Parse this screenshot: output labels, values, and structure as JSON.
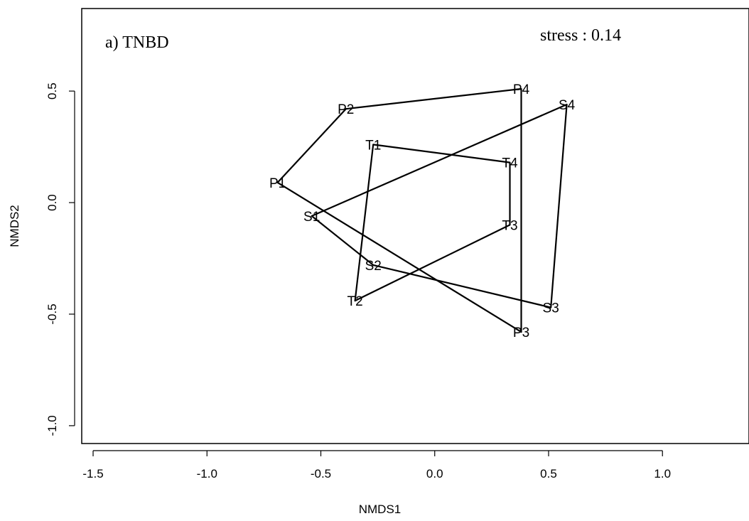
{
  "chart_data": {
    "type": "scatter",
    "title": "",
    "panel_label": "a) TNBD",
    "annotation": "stress : 0.14",
    "xlabel": "NMDS1",
    "ylabel": "NMDS2",
    "xlim": [
      -1.55,
      1.38
    ],
    "ylim": [
      -1.08,
      0.87
    ],
    "xticks": [
      -1.5,
      -1.0,
      -0.5,
      0.0,
      0.5,
      1.0
    ],
    "xtick_labels": [
      "-1.5",
      "-1.0",
      "-0.5",
      "0.0",
      "0.5",
      "1.0"
    ],
    "yticks": [
      -1.0,
      -0.5,
      0.0,
      0.5
    ],
    "ytick_labels": [
      "-1.0",
      "-0.5",
      "0.0",
      "0.5"
    ],
    "points": [
      {
        "label": "P1",
        "x": -0.69,
        "y": 0.09
      },
      {
        "label": "P2",
        "x": -0.39,
        "y": 0.42
      },
      {
        "label": "P4",
        "x": 0.38,
        "y": 0.51
      },
      {
        "label": "P3",
        "x": 0.38,
        "y": -0.58
      },
      {
        "label": "S1",
        "x": -0.54,
        "y": -0.06
      },
      {
        "label": "S4",
        "x": 0.58,
        "y": 0.44
      },
      {
        "label": "S3",
        "x": 0.51,
        "y": -0.47
      },
      {
        "label": "S2",
        "x": -0.27,
        "y": -0.28
      },
      {
        "label": "T1",
        "x": -0.27,
        "y": 0.26
      },
      {
        "label": "T4",
        "x": 0.33,
        "y": 0.18
      },
      {
        "label": "T3",
        "x": 0.33,
        "y": -0.1
      },
      {
        "label": "T2",
        "x": -0.35,
        "y": -0.44
      }
    ],
    "polygons": [
      {
        "group": "P",
        "order": [
          "P1",
          "P2",
          "P4",
          "P3"
        ]
      },
      {
        "group": "S",
        "order": [
          "S1",
          "S4",
          "S3",
          "S2"
        ]
      },
      {
        "group": "T",
        "order": [
          "T1",
          "T4",
          "T3",
          "T2"
        ]
      }
    ]
  }
}
